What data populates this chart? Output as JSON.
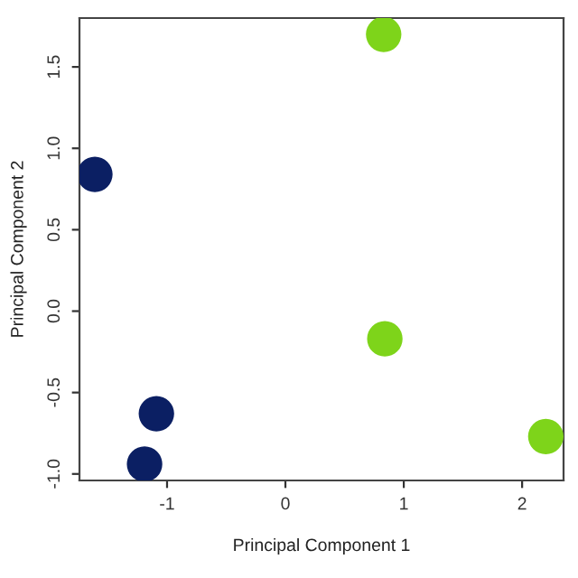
{
  "chart_data": {
    "type": "scatter",
    "xlabel": "Principal Component 1",
    "ylabel": "Principal Component 2",
    "xlim": [
      -1.74,
      2.35
    ],
    "ylim": [
      -1.04,
      1.8
    ],
    "xticks": [
      -1,
      0,
      1,
      2
    ],
    "yticks": [
      {
        "value": -1.0,
        "label": "-1.0"
      },
      {
        "value": -0.5,
        "label": "-0.5"
      },
      {
        "value": 0.0,
        "label": "0.0"
      },
      {
        "value": 0.5,
        "label": "0.5"
      },
      {
        "value": 1.0,
        "label": "1.0"
      },
      {
        "value": 1.5,
        "label": "1.5"
      }
    ],
    "grid": false,
    "legend": false,
    "marker": "circle",
    "series": [
      {
        "color": "#0b1f63",
        "x": [
          -1.61,
          -1.09,
          -1.19
        ],
        "values": [
          0.84,
          -0.63,
          -0.94
        ]
      },
      {
        "color": "#7ed41a",
        "x": [
          0.83,
          0.84,
          2.2
        ],
        "values": [
          1.7,
          -0.17,
          -0.77
        ]
      }
    ]
  }
}
